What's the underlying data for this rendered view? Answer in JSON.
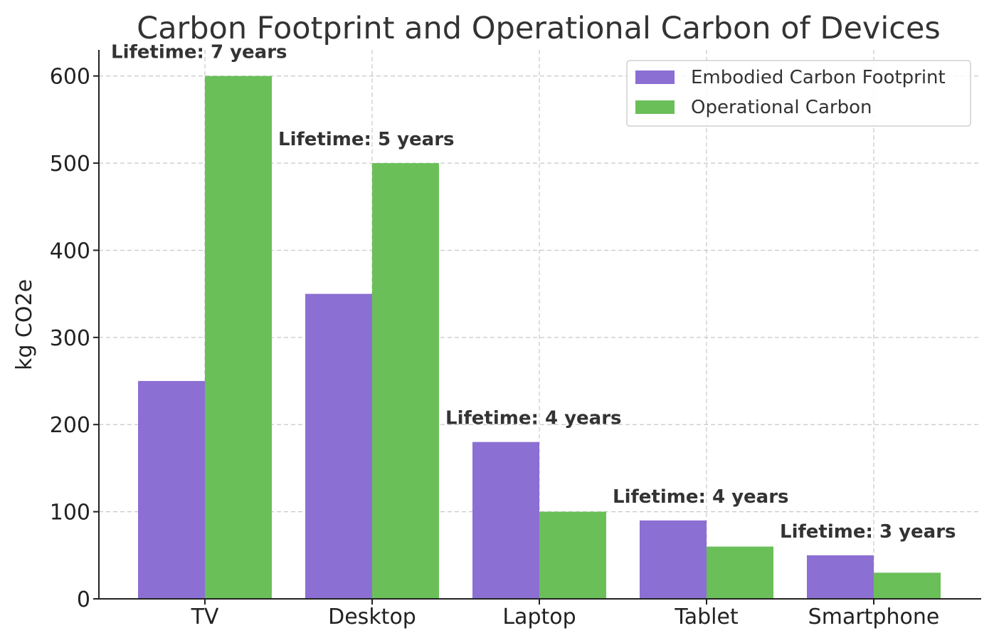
{
  "chart_data": {
    "type": "bar",
    "title": "Carbon Footprint and Operational Carbon of Devices",
    "xlabel": "",
    "ylabel": "kg CO2e",
    "categories": [
      "TV",
      "Desktop",
      "Laptop",
      "Tablet",
      "Smartphone"
    ],
    "series": [
      {
        "name": "Embodied Carbon Footprint",
        "color": "#8c6fd3",
        "values": [
          250,
          350,
          180,
          90,
          50
        ]
      },
      {
        "name": "Operational Carbon",
        "color": "#6bbf59",
        "values": [
          600,
          500,
          100,
          60,
          30
        ]
      }
    ],
    "annotations": [
      "Lifetime: 7 years",
      "Lifetime: 5 years",
      "Lifetime: 4 years",
      "Lifetime: 4 years",
      "Lifetime: 3 years"
    ],
    "ylim": [
      0,
      630
    ],
    "yticks": [
      0,
      100,
      200,
      300,
      400,
      500,
      600
    ],
    "grid": true,
    "legend_position": "top-right"
  }
}
